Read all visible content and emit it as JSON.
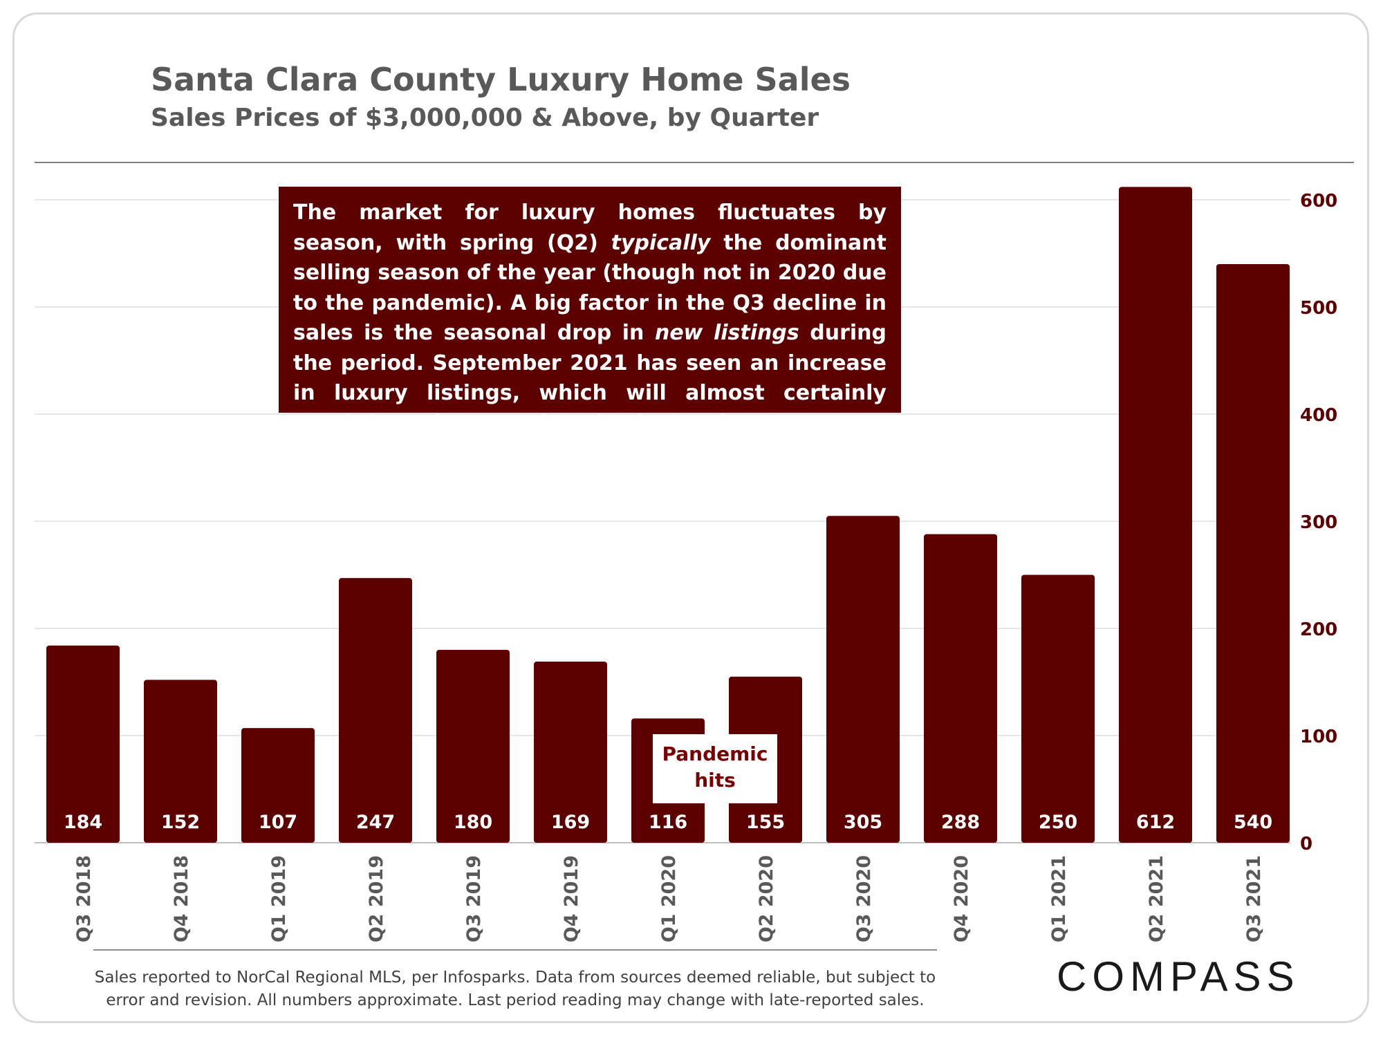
{
  "header": {
    "title": "Santa Clara County Luxury Home Sales",
    "subtitle": "Sales Prices of $3,000,000 & Above, by Quarter"
  },
  "annotation": {
    "line1": "The market for luxury homes fluctuates by season, with spring (Q2) ",
    "typically": "typically",
    "line2": " the dominant selling season of the year (though not in 2020 due to the pandemic).  A big factor in the Q3 decline in sales is the seasonal drop in ",
    "new_listings": "new listings",
    "line3": " during the period. September 2021 has seen an increase in luxury listings, which will almost certainly result in an increase in sales in October."
  },
  "pandemic_label": {
    "line1": "Pandemic",
    "line2": "hits"
  },
  "footnote": {
    "line1": "Sales reported to NorCal Regional MLS, per Infosparks. Data from sources deemed reliable, but subject to",
    "line2": "error and revision. All numbers approximate. Last period reading may change with late-reported sales."
  },
  "logo": {
    "text": "COMPASS"
  },
  "colors": {
    "bar": "#5c0000",
    "bar_label": "#ffffff",
    "y_tick": "#5c0000",
    "gridline": "#e6e6e6",
    "axis_line": "#bfbfbf"
  },
  "chart_data": {
    "type": "bar",
    "title": "Santa Clara County Luxury Home Sales",
    "subtitle": "Sales Prices of $3,000,000 & Above, by Quarter",
    "categories": [
      "Q3 2018",
      "Q4 2018",
      "Q1 2019",
      "Q2 2019",
      "Q3 2019",
      "Q4 2019",
      "Q1 2020",
      "Q2 2020",
      "Q3 2020",
      "Q4 2020",
      "Q1 2021",
      "Q2 2021",
      "Q3 2021"
    ],
    "values": [
      184,
      152,
      107,
      247,
      180,
      169,
      116,
      155,
      305,
      288,
      250,
      612,
      540
    ],
    "data_labels": [
      "184",
      "152",
      "107",
      "247",
      "180",
      "169",
      "116",
      "155",
      "305",
      "288",
      "250",
      "612",
      "540"
    ],
    "y_ticks": [
      0,
      100,
      200,
      300,
      400,
      500,
      600
    ],
    "ylim": [
      0,
      600
    ],
    "y_axis_side": "right",
    "grid": true,
    "xlabel": "",
    "ylabel": ""
  }
}
